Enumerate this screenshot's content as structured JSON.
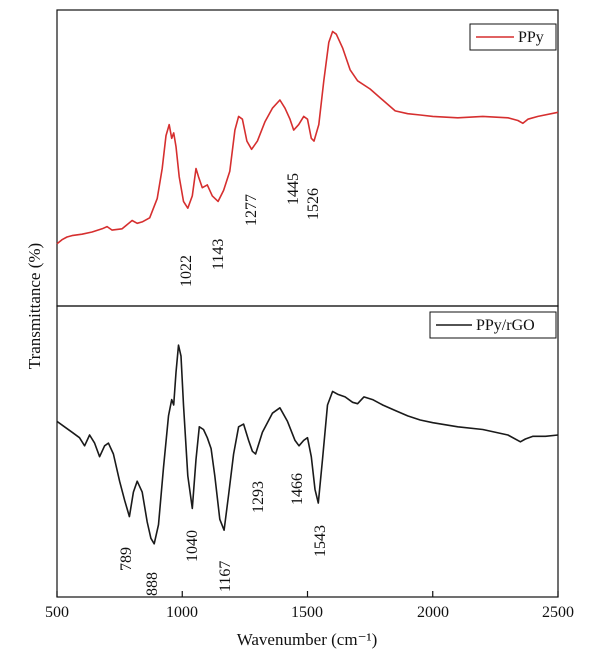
{
  "chart_data": {
    "type": "line",
    "xlabel": "Wavenumber (cm⁻¹)",
    "ylabel": "Transmittance (%)",
    "xlim": [
      500,
      2500
    ],
    "x_ticks": [
      "500",
      "1000",
      "1500",
      "2000",
      "2500"
    ],
    "grid": false,
    "legend_position": "top-right",
    "panels": [
      {
        "name": "PPy",
        "color": "#d62f2f",
        "ylim": [
          0,
          100
        ],
        "points": [
          [
            500,
            20.5
          ],
          [
            520,
            22
          ],
          [
            540,
            23
          ],
          [
            560,
            23.5
          ],
          [
            600,
            24
          ],
          [
            640,
            24.8
          ],
          [
            680,
            26
          ],
          [
            700,
            26.8
          ],
          [
            720,
            25.5
          ],
          [
            760,
            26
          ],
          [
            800,
            29
          ],
          [
            820,
            28
          ],
          [
            840,
            28.5
          ],
          [
            870,
            30
          ],
          [
            900,
            37
          ],
          [
            920,
            48
          ],
          [
            935,
            60
          ],
          [
            948,
            64
          ],
          [
            958,
            59
          ],
          [
            966,
            61
          ],
          [
            975,
            56
          ],
          [
            988,
            45
          ],
          [
            1005,
            36
          ],
          [
            1022,
            33.5
          ],
          [
            1040,
            38
          ],
          [
            1055,
            48
          ],
          [
            1065,
            45
          ],
          [
            1080,
            41
          ],
          [
            1100,
            42
          ],
          [
            1120,
            38
          ],
          [
            1143,
            36
          ],
          [
            1165,
            40
          ],
          [
            1190,
            47
          ],
          [
            1210,
            62
          ],
          [
            1225,
            67
          ],
          [
            1240,
            66
          ],
          [
            1258,
            58
          ],
          [
            1277,
            55
          ],
          [
            1300,
            58
          ],
          [
            1330,
            65
          ],
          [
            1360,
            70
          ],
          [
            1390,
            73
          ],
          [
            1410,
            70
          ],
          [
            1430,
            66
          ],
          [
            1445,
            62
          ],
          [
            1465,
            64
          ],
          [
            1485,
            67
          ],
          [
            1500,
            66
          ],
          [
            1515,
            59
          ],
          [
            1526,
            58
          ],
          [
            1545,
            64
          ],
          [
            1565,
            80
          ],
          [
            1585,
            94
          ],
          [
            1600,
            98
          ],
          [
            1615,
            97
          ],
          [
            1640,
            92
          ],
          [
            1670,
            84
          ],
          [
            1700,
            80
          ],
          [
            1750,
            77
          ],
          [
            1800,
            73
          ],
          [
            1850,
            69
          ],
          [
            1900,
            68
          ],
          [
            1950,
            67.5
          ],
          [
            2000,
            67
          ],
          [
            2100,
            66.5
          ],
          [
            2200,
            67
          ],
          [
            2300,
            66.5
          ],
          [
            2340,
            65.5
          ],
          [
            2360,
            64.5
          ],
          [
            2380,
            66
          ],
          [
            2420,
            67
          ],
          [
            2500,
            68.5
          ]
        ],
        "peak_labels": [
          "1022",
          "1143",
          "1277",
          "1445",
          "1526"
        ],
        "peak_x": [
          1022,
          1143,
          1277,
          1445,
          1526
        ]
      },
      {
        "name": "PPy/rGO",
        "color": "#1a1a1a",
        "ylim": [
          0,
          100
        ],
        "points": [
          [
            500,
            62
          ],
          [
            530,
            60
          ],
          [
            560,
            58
          ],
          [
            590,
            56
          ],
          [
            610,
            53
          ],
          [
            630,
            57
          ],
          [
            650,
            54
          ],
          [
            670,
            49
          ],
          [
            690,
            53
          ],
          [
            705,
            54
          ],
          [
            725,
            50
          ],
          [
            750,
            40
          ],
          [
            770,
            33
          ],
          [
            789,
            27
          ],
          [
            805,
            36
          ],
          [
            820,
            40
          ],
          [
            840,
            36
          ],
          [
            860,
            25
          ],
          [
            875,
            19
          ],
          [
            888,
            17
          ],
          [
            905,
            24
          ],
          [
            925,
            45
          ],
          [
            945,
            64
          ],
          [
            958,
            70
          ],
          [
            966,
            68
          ],
          [
            975,
            80
          ],
          [
            985,
            90
          ],
          [
            995,
            86
          ],
          [
            1005,
            68
          ],
          [
            1022,
            42
          ],
          [
            1040,
            30
          ],
          [
            1055,
            48
          ],
          [
            1068,
            60
          ],
          [
            1085,
            59
          ],
          [
            1100,
            56
          ],
          [
            1115,
            52
          ],
          [
            1130,
            42
          ],
          [
            1150,
            26
          ],
          [
            1167,
            22
          ],
          [
            1185,
            35
          ],
          [
            1205,
            50
          ],
          [
            1225,
            60
          ],
          [
            1245,
            61
          ],
          [
            1265,
            55
          ],
          [
            1280,
            51
          ],
          [
            1293,
            50
          ],
          [
            1320,
            58
          ],
          [
            1360,
            65
          ],
          [
            1390,
            67
          ],
          [
            1420,
            62
          ],
          [
            1450,
            55
          ],
          [
            1466,
            53
          ],
          [
            1485,
            55
          ],
          [
            1500,
            56
          ],
          [
            1515,
            49
          ],
          [
            1530,
            37
          ],
          [
            1543,
            32
          ],
          [
            1560,
            48
          ],
          [
            1580,
            68
          ],
          [
            1600,
            73
          ],
          [
            1620,
            72
          ],
          [
            1650,
            71
          ],
          [
            1680,
            69
          ],
          [
            1700,
            68.5
          ],
          [
            1725,
            71
          ],
          [
            1760,
            70
          ],
          [
            1800,
            68
          ],
          [
            1850,
            66
          ],
          [
            1900,
            64
          ],
          [
            1950,
            62.5
          ],
          [
            2000,
            61.5
          ],
          [
            2100,
            60
          ],
          [
            2200,
            59
          ],
          [
            2300,
            57
          ],
          [
            2350,
            54.5
          ],
          [
            2370,
            55.5
          ],
          [
            2400,
            56.5
          ],
          [
            2450,
            56.5
          ],
          [
            2500,
            57
          ]
        ],
        "peak_labels": [
          "789",
          "888",
          "1040",
          "1167",
          "1293",
          "1466",
          "1543"
        ],
        "peak_x": [
          789,
          888,
          1040,
          1167,
          1293,
          1466,
          1543
        ]
      }
    ]
  }
}
